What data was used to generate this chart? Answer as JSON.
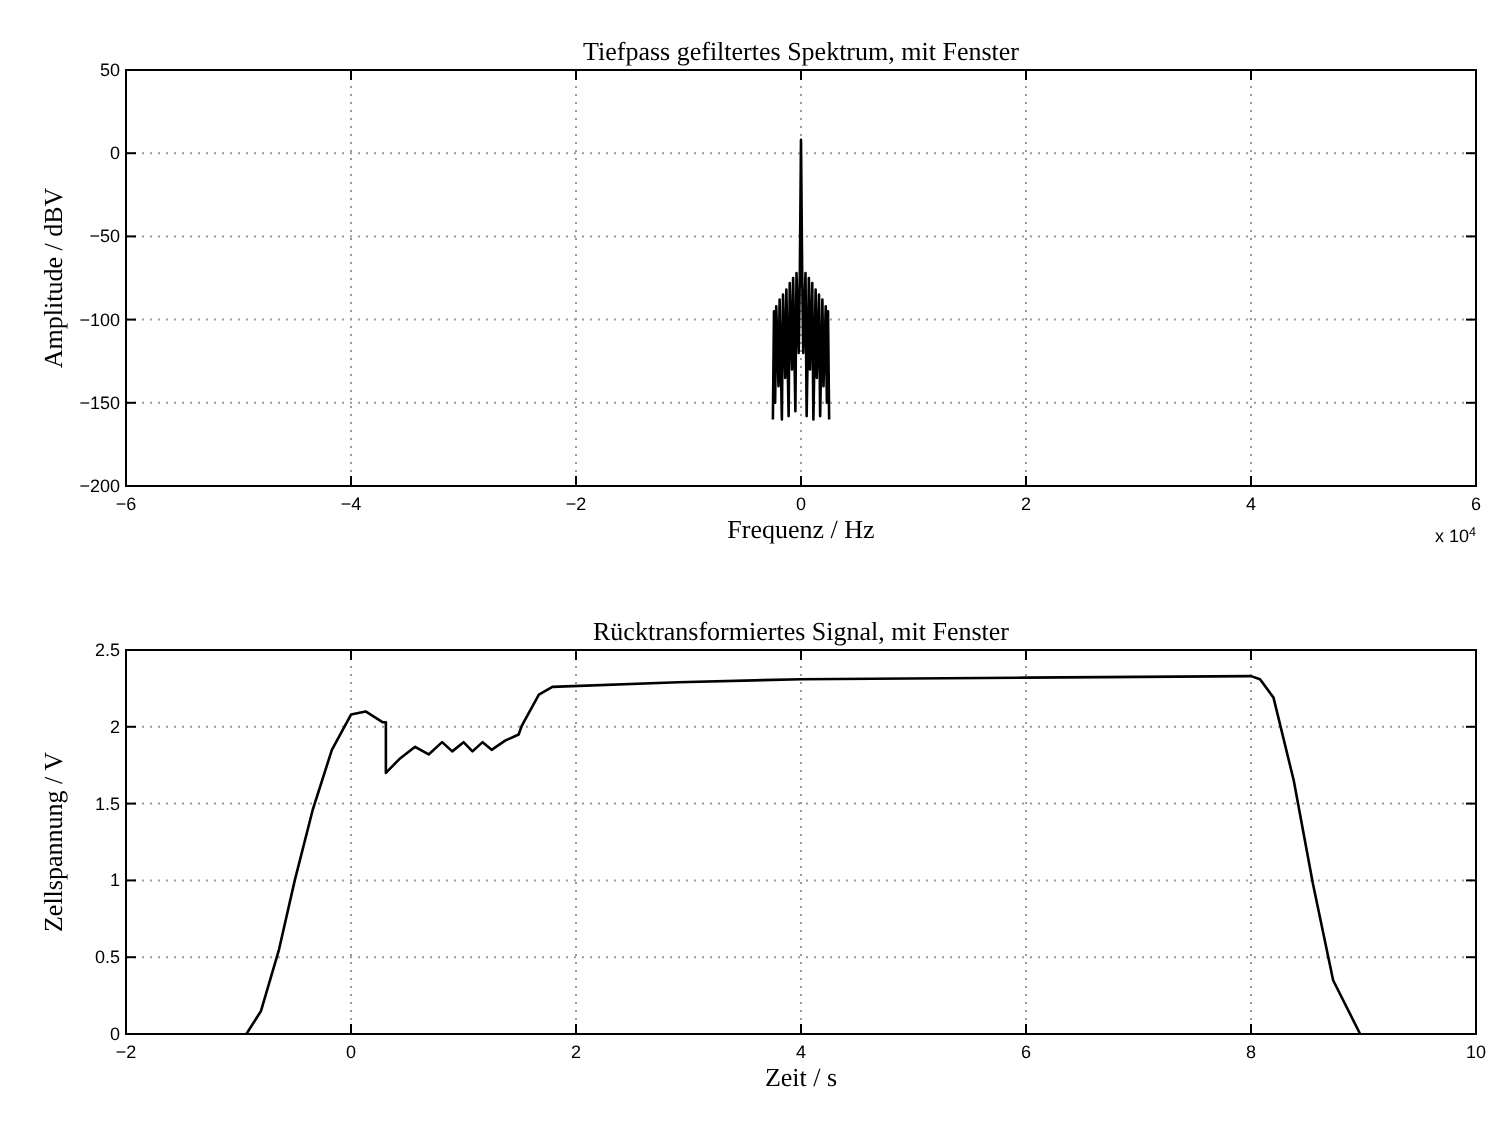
{
  "chart_data": [
    {
      "type": "line",
      "title": "Tiefpass gefiltertes Spektrum, mit Fenster",
      "xlabel": "Frequenz / Hz",
      "ylabel": "Amplitude / dBV",
      "annotations": [
        "x 10$^{4}$"
      ],
      "grid": true,
      "xlim": [
        -6,
        6
      ],
      "xticks": [
        {
          "value": -6,
          "label": "−6"
        },
        {
          "value": -4,
          "label": "−4"
        },
        {
          "value": -2,
          "label": "−2"
        },
        0,
        2,
        4,
        6
      ],
      "ylim": [
        -200,
        50
      ],
      "yticks": [
        {
          "value": -200,
          "label": "−200"
        },
        {
          "value": -150,
          "label": "−150"
        },
        {
          "value": -100,
          "label": "−100"
        },
        {
          "value": -50,
          "label": "−50"
        },
        0,
        50
      ],
      "series": [
        {
          "color": "#000000",
          "x": [
            -0.25,
            -0.24,
            -0.23,
            -0.22,
            -0.2,
            -0.19,
            -0.17,
            -0.16,
            -0.14,
            -0.13,
            -0.11,
            -0.1,
            -0.08,
            -0.07,
            -0.05,
            -0.04,
            -0.02,
            -0.01,
            0,
            0.01,
            0.02,
            0.04,
            0.05,
            0.07,
            0.08,
            0.1,
            0.11,
            0.13,
            0.14,
            0.16,
            0.17,
            0.19,
            0.2,
            0.22,
            0.23,
            0.24,
            0.25
          ],
          "values": [
            -160,
            -95,
            -150,
            -92,
            -140,
            -88,
            -160,
            -85,
            -135,
            -82,
            -158,
            -78,
            -130,
            -75,
            -155,
            -72,
            -120,
            -70,
            8,
            -70,
            -120,
            -72,
            -158,
            -75,
            -130,
            -78,
            -160,
            -82,
            -135,
            -85,
            -158,
            -88,
            -140,
            -92,
            -150,
            -95,
            -160
          ]
        }
      ]
    },
    {
      "type": "line",
      "title": "Rücktransformiertes Signal, mit Fenster",
      "xlabel": "Zeit / s",
      "ylabel": "Zellspannung / V",
      "grid": true,
      "xlim": [
        -2,
        10
      ],
      "xticks": [
        {
          "value": -2,
          "label": "−2"
        },
        0,
        2,
        4,
        6,
        8,
        10
      ],
      "ylim": [
        0,
        2.5
      ],
      "yticks": [
        0,
        0.5,
        1,
        1.5,
        2,
        2.5
      ],
      "series": [
        {
          "color": "#000000",
          "x": [
            -0.93,
            -0.8,
            -0.64,
            -0.5,
            -0.34,
            -0.17,
            0,
            0.13,
            0.28,
            0.31,
            0.31,
            0.43,
            0.57,
            0.69,
            0.81,
            0.9,
            1.0,
            1.08,
            1.17,
            1.25,
            1.37,
            1.49,
            1.52,
            1.67,
            1.79,
            2.91,
            4,
            6,
            8,
            8.08,
            8.2,
            8.38,
            8.55,
            8.73,
            8.97
          ],
          "values": [
            0,
            0.15,
            0.55,
            1.0,
            1.46,
            1.85,
            2.08,
            2.1,
            2.03,
            2.03,
            1.7,
            1.79,
            1.87,
            1.82,
            1.9,
            1.84,
            1.9,
            1.84,
            1.9,
            1.85,
            1.91,
            1.95,
            2.01,
            2.21,
            2.26,
            2.29,
            2.31,
            2.32,
            2.33,
            2.31,
            2.19,
            1.65,
            0.98,
            0.35,
            0
          ]
        }
      ]
    }
  ]
}
